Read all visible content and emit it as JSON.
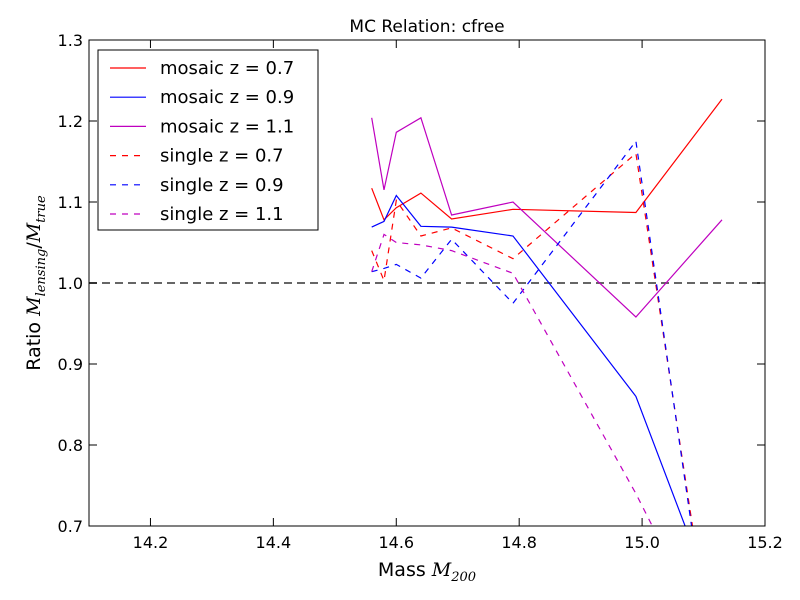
{
  "chart_data": {
    "type": "line",
    "title": "MC Relation: cfree",
    "xlabel": {
      "prefix": "Mass ",
      "math_main": "M",
      "math_sub": "200"
    },
    "ylabel": {
      "prefix": "Ratio ",
      "num_main": "M",
      "num_sub": "lensing",
      "sep": "/",
      "den_main": "M",
      "den_sub": "true"
    },
    "xlim": [
      14.1,
      15.2
    ],
    "ylim": [
      0.7,
      1.3
    ],
    "xticks": [
      14.2,
      14.4,
      14.6,
      14.8,
      15.0,
      15.2
    ],
    "xtick_labels": [
      "14.2",
      "14.4",
      "14.6",
      "14.8",
      "15.0",
      "15.2"
    ],
    "yticks": [
      0.7,
      0.8,
      0.9,
      1.0,
      1.1,
      1.2,
      1.3
    ],
    "ytick_labels": [
      "0.7",
      "0.8",
      "0.9",
      "1.0",
      "1.1",
      "1.2",
      "1.3"
    ],
    "reference_line": {
      "y": 1.0,
      "color": "#666666",
      "style": "dashed"
    },
    "grid": false,
    "legend_position": "top-left",
    "series": [
      {
        "name": "mosaic z = 0.7",
        "color": "#ff0000",
        "style": "solid",
        "x": [
          14.56,
          14.58,
          14.6,
          14.64,
          14.69,
          14.79,
          14.99,
          15.13
        ],
        "y": [
          1.117,
          1.078,
          1.093,
          1.111,
          1.079,
          1.091,
          1.087,
          1.227
        ]
      },
      {
        "name": "mosaic z = 0.9",
        "color": "#0000ff",
        "style": "solid",
        "x": [
          14.56,
          14.58,
          14.6,
          14.64,
          14.69,
          14.79,
          14.99,
          15.09
        ],
        "y": [
          1.069,
          1.076,
          1.108,
          1.07,
          1.069,
          1.058,
          0.86,
          0.66
        ]
      },
      {
        "name": "mosaic z = 1.1",
        "color": "#bf00bf",
        "style": "solid",
        "x": [
          14.56,
          14.58,
          14.6,
          14.64,
          14.69,
          14.79,
          14.99,
          15.13
        ],
        "y": [
          1.204,
          1.115,
          1.186,
          1.204,
          1.084,
          1.1,
          0.958,
          1.078
        ]
      },
      {
        "name": "single z = 0.7",
        "color": "#ff0000",
        "style": "dashed",
        "x": [
          14.56,
          14.58,
          14.6,
          14.64,
          14.69,
          14.79,
          14.99,
          15.09
        ],
        "y": [
          1.04,
          1.003,
          1.102,
          1.058,
          1.068,
          1.03,
          1.16,
          0.66
        ]
      },
      {
        "name": "single z = 0.9",
        "color": "#0000ff",
        "style": "dashed",
        "x": [
          14.56,
          14.58,
          14.6,
          14.64,
          14.69,
          14.79,
          14.99,
          15.09
        ],
        "y": [
          1.014,
          1.018,
          1.023,
          1.006,
          1.054,
          0.975,
          1.175,
          0.65
        ]
      },
      {
        "name": "single z = 1.1",
        "color": "#bf00bf",
        "style": "dashed",
        "x": [
          14.56,
          14.58,
          14.6,
          14.64,
          14.69,
          14.79,
          14.99,
          15.05
        ],
        "y": [
          1.014,
          1.06,
          1.05,
          1.047,
          1.04,
          1.012,
          0.74,
          0.65
        ]
      }
    ]
  }
}
